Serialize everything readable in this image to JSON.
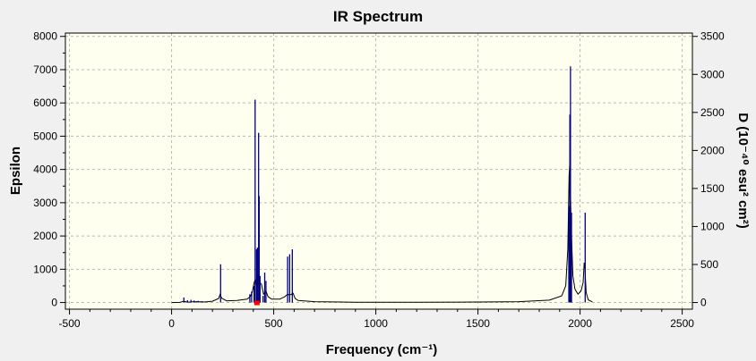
{
  "chart_data": {
    "type": "line",
    "title": "IR Spectrum",
    "xlabel": "Frequency (cm⁻¹)",
    "ylabel": "Epsilon",
    "y2label": "D (10⁻⁴⁰ esu² cm²)",
    "xlim": [
      -520,
      2550
    ],
    "ylim": [
      -200,
      8100
    ],
    "y2lim": [
      -87.5,
      3543.75
    ],
    "xticks": [
      -500,
      0,
      500,
      1000,
      1500,
      2000,
      2500
    ],
    "yticks": [
      0,
      1000,
      2000,
      3000,
      4000,
      5000,
      6000,
      7000,
      8000
    ],
    "y2ticks": [
      0,
      500,
      1000,
      1500,
      2000,
      2500,
      3000,
      3500
    ],
    "grid": true,
    "colors": {
      "background": "#fffff0",
      "spectrum": "#000000",
      "sticks": "#00007f",
      "marker": "#ff0000"
    },
    "series": [
      {
        "name": "",
        "kind": "spectrum",
        "x": [
          0,
          40,
          60,
          80,
          100,
          130,
          160,
          200,
          230,
          238,
          245,
          270,
          320,
          370,
          385,
          395,
          404,
          410,
          418,
          425,
          432,
          440,
          450,
          462,
          472,
          490,
          530,
          555,
          568,
          575,
          585,
          595,
          605,
          620,
          700,
          900,
          1200,
          1500,
          1700,
          1850,
          1910,
          1930,
          1940,
          1946,
          1950,
          1954,
          1958,
          1965,
          1975,
          1990,
          2005,
          2015,
          2020,
          2024,
          2030,
          2040,
          2060
        ],
        "y": [
          0,
          5,
          40,
          10,
          20,
          25,
          15,
          40,
          120,
          250,
          130,
          50,
          60,
          100,
          180,
          300,
          600,
          700,
          450,
          850,
          600,
          550,
          250,
          350,
          180,
          100,
          100,
          180,
          250,
          230,
          240,
          280,
          120,
          60,
          25,
          10,
          10,
          15,
          25,
          70,
          200,
          500,
          1600,
          3800,
          4200,
          3000,
          2000,
          800,
          400,
          250,
          350,
          600,
          1200,
          1000,
          300,
          80,
          20
        ]
      },
      {
        "name": "",
        "kind": "sticks",
        "x": [
          60,
          78,
          95,
          110,
          130,
          150,
          240,
          383,
          392,
          404,
          409,
          416,
          420,
          426,
          429,
          433,
          448,
          456,
          462,
          568,
          578,
          591,
          1945,
          1950,
          1953,
          1958,
          2025
        ],
        "y": [
          150,
          70,
          80,
          60,
          50,
          40,
          1150,
          250,
          330,
          500,
          6100,
          1600,
          1650,
          5100,
          3200,
          800,
          200,
          900,
          650,
          1380,
          1450,
          1600,
          2900,
          5650,
          7100,
          2700,
          2700
        ]
      }
    ],
    "markers": [
      {
        "x": 418,
        "y": 0
      }
    ]
  }
}
